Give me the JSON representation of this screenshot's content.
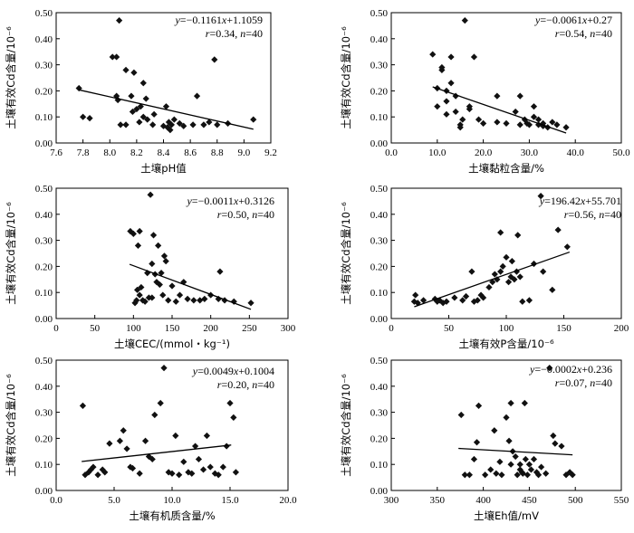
{
  "chart_data": [
    {
      "type": "scatter",
      "xlabel": "土壤pH值",
      "ylabel": "土壤有效Cd含量/10⁻⁶",
      "xlim": [
        7.6,
        9.2
      ],
      "ylim": [
        0,
        0.5
      ],
      "xticks": [
        "7.6",
        "7.8",
        "8.0",
        "8.2",
        "8.4",
        "8.6",
        "8.8",
        "9.0",
        "9.2"
      ],
      "yticks": [
        "0.00",
        "0.10",
        "0.20",
        "0.30",
        "0.40",
        "0.50"
      ],
      "equation": "y=−0.1161x+1.1059",
      "stats": "r=0.34, n=40",
      "fit": {
        "slope": -0.1161,
        "intercept": 1.1059,
        "x_range": [
          7.77,
          9.07
        ]
      },
      "points": [
        [
          7.77,
          0.21
        ],
        [
          7.8,
          0.1
        ],
        [
          7.85,
          0.095
        ],
        [
          8.02,
          0.33
        ],
        [
          8.05,
          0.33
        ],
        [
          8.05,
          0.18
        ],
        [
          8.06,
          0.165
        ],
        [
          8.07,
          0.47
        ],
        [
          8.08,
          0.07
        ],
        [
          8.12,
          0.28
        ],
        [
          8.12,
          0.07
        ],
        [
          8.16,
          0.18
        ],
        [
          8.17,
          0.12
        ],
        [
          8.18,
          0.27
        ],
        [
          8.2,
          0.13
        ],
        [
          8.22,
          0.08
        ],
        [
          8.23,
          0.14
        ],
        [
          8.25,
          0.23
        ],
        [
          8.25,
          0.1
        ],
        [
          8.27,
          0.17
        ],
        [
          8.28,
          0.09
        ],
        [
          8.32,
          0.07
        ],
        [
          8.33,
          0.11
        ],
        [
          8.4,
          0.065
        ],
        [
          8.42,
          0.14
        ],
        [
          8.43,
          0.06
        ],
        [
          8.44,
          0.08
        ],
        [
          8.45,
          0.05
        ],
        [
          8.46,
          0.07
        ],
        [
          8.48,
          0.09
        ],
        [
          8.52,
          0.075
        ],
        [
          8.55,
          0.065
        ],
        [
          8.62,
          0.07
        ],
        [
          8.65,
          0.18
        ],
        [
          8.7,
          0.07
        ],
        [
          8.74,
          0.08
        ],
        [
          8.78,
          0.32
        ],
        [
          8.8,
          0.07
        ],
        [
          8.88,
          0.075
        ],
        [
          9.07,
          0.09
        ]
      ]
    },
    {
      "type": "scatter",
      "xlabel": "土壤黏粒含量/%",
      "ylabel": "土壤有效Cd含量/10⁻⁶",
      "xlim": [
        0,
        50
      ],
      "ylim": [
        0,
        0.5
      ],
      "xticks": [
        "0.0",
        "10.0",
        "20.0",
        "30.0",
        "40.0",
        "50.0"
      ],
      "yticks": [
        "0.00",
        "0.10",
        "0.20",
        "0.30",
        "0.40",
        "0.50"
      ],
      "equation": "y=−0.0061x+0.27",
      "stats": "r=0.54, n=40",
      "fit": {
        "slope": -0.0061,
        "intercept": 0.27,
        "x_range": [
          9,
          38
        ]
      },
      "points": [
        [
          9.0,
          0.34
        ],
        [
          10.0,
          0.21
        ],
        [
          10.0,
          0.14
        ],
        [
          11.0,
          0.28
        ],
        [
          11.0,
          0.29
        ],
        [
          12.0,
          0.2
        ],
        [
          12.0,
          0.16
        ],
        [
          12.0,
          0.11
        ],
        [
          13.0,
          0.33
        ],
        [
          13.0,
          0.23
        ],
        [
          14.0,
          0.18
        ],
        [
          14.0,
          0.12
        ],
        [
          15.0,
          0.07
        ],
        [
          15.0,
          0.06
        ],
        [
          15.5,
          0.09
        ],
        [
          16.0,
          0.47
        ],
        [
          17.0,
          0.13
        ],
        [
          17.0,
          0.14
        ],
        [
          18.0,
          0.33
        ],
        [
          19.0,
          0.09
        ],
        [
          20.0,
          0.075
        ],
        [
          23.0,
          0.18
        ],
        [
          23.0,
          0.08
        ],
        [
          25.0,
          0.075
        ],
        [
          27.0,
          0.12
        ],
        [
          28.0,
          0.18
        ],
        [
          28.0,
          0.07
        ],
        [
          29.0,
          0.09
        ],
        [
          29.5,
          0.075
        ],
        [
          30.0,
          0.07
        ],
        [
          31.0,
          0.14
        ],
        [
          31.0,
          0.1
        ],
        [
          32.0,
          0.09
        ],
        [
          32.0,
          0.07
        ],
        [
          33.0,
          0.065
        ],
        [
          33.0,
          0.075
        ],
        [
          34.0,
          0.06
        ],
        [
          35.0,
          0.08
        ],
        [
          36.0,
          0.07
        ],
        [
          38.0,
          0.06
        ]
      ]
    },
    {
      "type": "scatter",
      "xlabel": "土壤CEC/(mmol・kg⁻¹)",
      "ylabel": "土壤有效Cd含量/10⁻⁶",
      "xlim": [
        0,
        300
      ],
      "ylim": [
        0,
        0.5
      ],
      "xticks": [
        "0",
        "50",
        "100",
        "150",
        "200",
        "250",
        "300"
      ],
      "yticks": [
        "0.00",
        "0.10",
        "0.20",
        "0.30",
        "0.40",
        "0.50"
      ],
      "equation": "y=−0.0011x+0.3126",
      "stats": "r=0.50, n=40",
      "fit": {
        "slope": -0.0011,
        "intercept": 0.3126,
        "x_range": [
          95,
          252
        ]
      },
      "points": [
        [
          96,
          0.335
        ],
        [
          100,
          0.325
        ],
        [
          102,
          0.06
        ],
        [
          104,
          0.07
        ],
        [
          105,
          0.11
        ],
        [
          106,
          0.28
        ],
        [
          108,
          0.335
        ],
        [
          108,
          0.09
        ],
        [
          110,
          0.12
        ],
        [
          112,
          0.07
        ],
        [
          115,
          0.065
        ],
        [
          118,
          0.175
        ],
        [
          120,
          0.08
        ],
        [
          122,
          0.475
        ],
        [
          124,
          0.21
        ],
        [
          124,
          0.08
        ],
        [
          126,
          0.32
        ],
        [
          128,
          0.17
        ],
        [
          130,
          0.14
        ],
        [
          132,
          0.28
        ],
        [
          134,
          0.13
        ],
        [
          136,
          0.175
        ],
        [
          138,
          0.09
        ],
        [
          140,
          0.24
        ],
        [
          142,
          0.22
        ],
        [
          145,
          0.07
        ],
        [
          150,
          0.125
        ],
        [
          155,
          0.065
        ],
        [
          160,
          0.09
        ],
        [
          165,
          0.14
        ],
        [
          170,
          0.075
        ],
        [
          178,
          0.07
        ],
        [
          186,
          0.07
        ],
        [
          192,
          0.075
        ],
        [
          200,
          0.09
        ],
        [
          210,
          0.075
        ],
        [
          212,
          0.18
        ],
        [
          218,
          0.07
        ],
        [
          230,
          0.065
        ],
        [
          252,
          0.06
        ]
      ]
    },
    {
      "type": "scatter",
      "xlabel": "土壤有效P含量/10⁻⁶",
      "ylabel": "土壤有效Cd含量/10⁻⁶",
      "xlim": [
        0,
        200
      ],
      "ylim": [
        0,
        0.5
      ],
      "xticks": [
        "0",
        "50",
        "100",
        "150",
        "200"
      ],
      "yticks": [
        "0.00",
        "0.10",
        "0.20",
        "0.30",
        "0.40",
        "0.50"
      ],
      "equation": "y=196.42x+55.701",
      "stats": "r=0.56, n=40",
      "fit": {
        "x_range": [
          20,
          155
        ],
        "y_range": [
          0.045,
          0.255
        ]
      },
      "points": [
        [
          20,
          0.065
        ],
        [
          21,
          0.09
        ],
        [
          23,
          0.06
        ],
        [
          28,
          0.07
        ],
        [
          38,
          0.075
        ],
        [
          40,
          0.065
        ],
        [
          42,
          0.07
        ],
        [
          45,
          0.06
        ],
        [
          48,
          0.065
        ],
        [
          55,
          0.08
        ],
        [
          62,
          0.07
        ],
        [
          65,
          0.085
        ],
        [
          70,
          0.18
        ],
        [
          72,
          0.065
        ],
        [
          75,
          0.07
        ],
        [
          78,
          0.09
        ],
        [
          80,
          0.08
        ],
        [
          85,
          0.12
        ],
        [
          88,
          0.14
        ],
        [
          90,
          0.17
        ],
        [
          92,
          0.15
        ],
        [
          95,
          0.33
        ],
        [
          95,
          0.18
        ],
        [
          97,
          0.2
        ],
        [
          100,
          0.235
        ],
        [
          102,
          0.14
        ],
        [
          104,
          0.16
        ],
        [
          105,
          0.22
        ],
        [
          107,
          0.15
        ],
        [
          109,
          0.18
        ],
        [
          110,
          0.32
        ],
        [
          112,
          0.16
        ],
        [
          114,
          0.065
        ],
        [
          120,
          0.07
        ],
        [
          124,
          0.21
        ],
        [
          130,
          0.47
        ],
        [
          132,
          0.18
        ],
        [
          140,
          0.11
        ],
        [
          145,
          0.34
        ],
        [
          153,
          0.275
        ]
      ]
    },
    {
      "type": "scatter",
      "xlabel": "土壤有机质含量/%",
      "ylabel": "土壤有效Cd含量/10⁻⁶",
      "xlim": [
        0,
        20
      ],
      "ylim": [
        0,
        0.5
      ],
      "xticks": [
        "0.0",
        "5.0",
        "10.0",
        "15.0",
        "20.0"
      ],
      "yticks": [
        "0.00",
        "0.10",
        "0.20",
        "0.30",
        "0.40",
        "0.50"
      ],
      "equation": "y=0.0049x+0.1004",
      "stats": "r=0.20, n=40",
      "fit": {
        "slope": 0.0049,
        "intercept": 0.1004,
        "x_range": [
          2.2,
          15.1
        ]
      },
      "points": [
        [
          2.3,
          0.325
        ],
        [
          2.5,
          0.06
        ],
        [
          2.8,
          0.07
        ],
        [
          3.0,
          0.08
        ],
        [
          3.2,
          0.09
        ],
        [
          3.6,
          0.06
        ],
        [
          4.0,
          0.08
        ],
        [
          4.2,
          0.07
        ],
        [
          4.6,
          0.18
        ],
        [
          5.5,
          0.19
        ],
        [
          5.8,
          0.23
        ],
        [
          6.1,
          0.16
        ],
        [
          6.4,
          0.09
        ],
        [
          6.6,
          0.085
        ],
        [
          7.2,
          0.065
        ],
        [
          7.7,
          0.19
        ],
        [
          8.0,
          0.13
        ],
        [
          8.3,
          0.12
        ],
        [
          8.5,
          0.29
        ],
        [
          9.0,
          0.335
        ],
        [
          9.3,
          0.47
        ],
        [
          9.7,
          0.07
        ],
        [
          10.0,
          0.065
        ],
        [
          10.3,
          0.21
        ],
        [
          10.6,
          0.06
        ],
        [
          11.0,
          0.11
        ],
        [
          11.4,
          0.07
        ],
        [
          11.7,
          0.065
        ],
        [
          12.0,
          0.17
        ],
        [
          12.3,
          0.12
        ],
        [
          12.7,
          0.08
        ],
        [
          13.0,
          0.21
        ],
        [
          13.3,
          0.09
        ],
        [
          13.7,
          0.065
        ],
        [
          14.0,
          0.06
        ],
        [
          14.4,
          0.09
        ],
        [
          14.7,
          0.17
        ],
        [
          15.0,
          0.335
        ],
        [
          15.3,
          0.28
        ],
        [
          15.5,
          0.07
        ]
      ]
    },
    {
      "type": "scatter",
      "xlabel": "土壤Eh值/mV",
      "ylabel": "土壤有效Cd含量/10⁻⁶",
      "xlim": [
        300,
        550
      ],
      "ylim": [
        0,
        0.5
      ],
      "xticks": [
        "300",
        "350",
        "400",
        "450",
        "500",
        "550"
      ],
      "yticks": [
        "0.00",
        "0.10",
        "0.20",
        "0.30",
        "0.40",
        "0.50"
      ],
      "equation": "y=−0.0002x+0.236",
      "stats": "r=0.07, n=40",
      "fit": {
        "slope": -0.0002,
        "intercept": 0.236,
        "x_range": [
          373,
          497
        ]
      },
      "points": [
        [
          376,
          0.29
        ],
        [
          380,
          0.06
        ],
        [
          385,
          0.06
        ],
        [
          390,
          0.12
        ],
        [
          393,
          0.185
        ],
        [
          395,
          0.325
        ],
        [
          402,
          0.06
        ],
        [
          408,
          0.08
        ],
        [
          412,
          0.23
        ],
        [
          414,
          0.065
        ],
        [
          418,
          0.11
        ],
        [
          420,
          0.06
        ],
        [
          425,
          0.28
        ],
        [
          428,
          0.19
        ],
        [
          430,
          0.335
        ],
        [
          430,
          0.1
        ],
        [
          432,
          0.15
        ],
        [
          435,
          0.13
        ],
        [
          437,
          0.06
        ],
        [
          440,
          0.1
        ],
        [
          440,
          0.08
        ],
        [
          442,
          0.07
        ],
        [
          443,
          0.065
        ],
        [
          445,
          0.335
        ],
        [
          446,
          0.12
        ],
        [
          448,
          0.06
        ],
        [
          450,
          0.1
        ],
        [
          452,
          0.08
        ],
        [
          455,
          0.12
        ],
        [
          458,
          0.07
        ],
        [
          460,
          0.06
        ],
        [
          463,
          0.09
        ],
        [
          468,
          0.065
        ],
        [
          472,
          0.47
        ],
        [
          476,
          0.21
        ],
        [
          478,
          0.18
        ],
        [
          485,
          0.17
        ],
        [
          490,
          0.06
        ],
        [
          494,
          0.07
        ],
        [
          497,
          0.06
        ]
      ]
    }
  ]
}
